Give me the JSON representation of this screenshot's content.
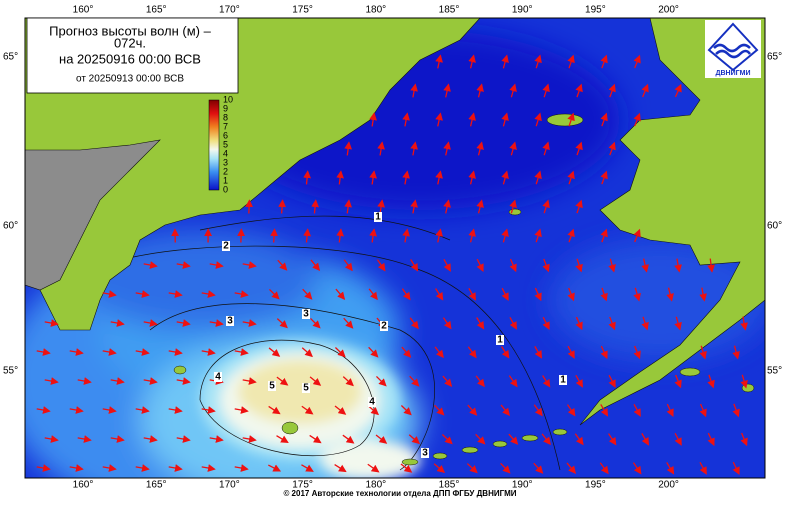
{
  "header": {
    "title": "Прогноз высоты волн (м) –",
    "lead": "072ч.",
    "valid": "на 20250916 00:00 ВСВ",
    "issued": "от 20250913 00:00 ВСВ"
  },
  "logo": {
    "text": "ДВНИГМИ"
  },
  "color_scale": {
    "labels": [
      0,
      1,
      2,
      3,
      4,
      5,
      6,
      7,
      8,
      9,
      10
    ]
  },
  "longitude_labels": [
    "160°",
    "165°",
    "170°",
    "175°",
    "180°",
    "185°",
    "190°",
    "195°",
    "200°"
  ],
  "latitude_labels": [
    "65°",
    "60°",
    "55°"
  ],
  "contour_labels": [
    "1",
    "2",
    "3",
    "3",
    "2",
    "1",
    "1",
    "4",
    "5",
    "5",
    "4",
    "3"
  ],
  "footer": "© 2017 Авторские технологии отдела ДПП ФГБУ ДВНИГМИ"
}
